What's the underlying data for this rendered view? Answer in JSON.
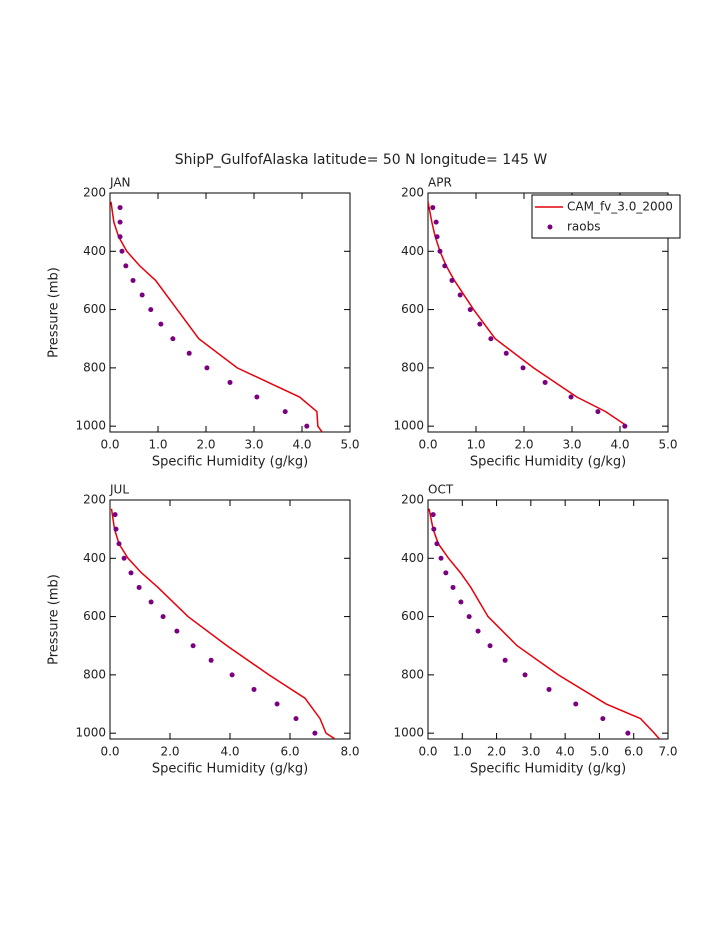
{
  "title": "ShipP_GulfofAlaska  latitude= 50 N longitude= 145 W",
  "chart_data": [
    {
      "type": "line",
      "label": "JAN",
      "xlabel": "Specific Humidity (g/kg)",
      "ylabel": "Pressure (mb)",
      "xlim": [
        0,
        5
      ],
      "ylim": [
        200,
        1020
      ],
      "y_reversed": true,
      "legend": false,
      "xticks": [
        {
          "value": 0,
          "label": "0.0"
        },
        {
          "value": 1,
          "label": "1.0"
        },
        {
          "value": 2,
          "label": "2.0"
        },
        {
          "value": 3,
          "label": "3.0"
        },
        {
          "value": 4,
          "label": "4.0"
        },
        {
          "value": 5,
          "label": "5.0"
        }
      ],
      "yticks": [
        200,
        400,
        600,
        800,
        1000
      ],
      "series": [
        {
          "name": "CAM_fv_3.0_2000",
          "color": "#e8000b",
          "style": "line",
          "x": [
            0.02,
            0.08,
            0.18,
            0.35,
            0.62,
            0.95,
            1.4,
            1.85,
            2.65,
            3.95,
            4.31,
            4.33,
            4.42
          ],
          "values": [
            230,
            300,
            350,
            400,
            450,
            500,
            600,
            700,
            800,
            900,
            950,
            1000,
            1020
          ]
        },
        {
          "name": "raobs",
          "color": "#7b0080",
          "style": "marker",
          "x": [
            0.21,
            0.21,
            0.21,
            0.25,
            0.33,
            0.48,
            0.67,
            0.85,
            1.06,
            1.31,
            1.65,
            2.02,
            2.5,
            3.06,
            3.65,
            4.1
          ],
          "values": [
            250,
            300,
            350,
            400,
            450,
            500,
            550,
            600,
            650,
            700,
            750,
            800,
            850,
            900,
            950,
            1000
          ]
        }
      ]
    },
    {
      "type": "line",
      "label": "APR",
      "xlabel": "Specific Humidity (g/kg)",
      "xlim": [
        0,
        5
      ],
      "ylim": [
        200,
        1020
      ],
      "y_reversed": true,
      "legend": true,
      "xticks": [
        {
          "value": 0,
          "label": "0.0"
        },
        {
          "value": 1,
          "label": "1.0"
        },
        {
          "value": 2,
          "label": "2.0"
        },
        {
          "value": 3,
          "label": "3.0"
        },
        {
          "value": 4,
          "label": "4.0"
        },
        {
          "value": 5,
          "label": "5.0"
        }
      ],
      "yticks": [
        200,
        400,
        600,
        800,
        1000
      ],
      "series": [
        {
          "name": "CAM_fv_3.0_2000",
          "color": "#e8000b",
          "style": "line",
          "x": [
            0.0,
            0.08,
            0.15,
            0.25,
            0.38,
            0.55,
            0.95,
            1.4,
            2.2,
            3.1,
            3.7,
            4.15
          ],
          "values": [
            230,
            300,
            350,
            400,
            450,
            500,
            600,
            700,
            800,
            900,
            950,
            1000
          ]
        },
        {
          "name": "raobs",
          "color": "#7b0080",
          "style": "marker",
          "x": [
            0.1,
            0.17,
            0.19,
            0.25,
            0.35,
            0.5,
            0.67,
            0.88,
            1.08,
            1.31,
            1.63,
            1.98,
            2.44,
            2.98,
            3.54,
            4.1
          ],
          "values": [
            250,
            300,
            350,
            400,
            450,
            500,
            550,
            600,
            650,
            700,
            750,
            800,
            850,
            900,
            950,
            1000
          ]
        }
      ]
    },
    {
      "type": "line",
      "label": "JUL",
      "xlabel": "Specific Humidity (g/kg)",
      "ylabel": "Pressure (mb)",
      "xlim": [
        0,
        8
      ],
      "ylim": [
        200,
        1020
      ],
      "y_reversed": true,
      "legend": false,
      "xticks": [
        {
          "value": 0,
          "label": "0.0"
        },
        {
          "value": 2,
          "label": "2.0"
        },
        {
          "value": 4,
          "label": "4.0"
        },
        {
          "value": 6,
          "label": "6.0"
        },
        {
          "value": 8,
          "label": "8.0"
        }
      ],
      "yticks": [
        200,
        400,
        600,
        800,
        1000
      ],
      "series": [
        {
          "name": "CAM_fv_3.0_2000",
          "color": "#e8000b",
          "style": "line",
          "x": [
            0.05,
            0.15,
            0.3,
            0.6,
            1.05,
            1.6,
            2.6,
            3.9,
            5.3,
            6.5,
            7.0,
            7.2,
            7.5
          ],
          "values": [
            230,
            300,
            350,
            400,
            450,
            500,
            600,
            700,
            800,
            880,
            950,
            1000,
            1020
          ]
        },
        {
          "name": "raobs",
          "color": "#7b0080",
          "style": "marker",
          "x": [
            0.17,
            0.2,
            0.3,
            0.47,
            0.7,
            0.97,
            1.37,
            1.77,
            2.23,
            2.77,
            3.37,
            4.07,
            4.8,
            5.57,
            6.2,
            6.83
          ],
          "values": [
            250,
            300,
            350,
            400,
            450,
            500,
            550,
            600,
            650,
            700,
            750,
            800,
            850,
            900,
            950,
            1000
          ]
        }
      ]
    },
    {
      "type": "line",
      "label": "OCT",
      "xlabel": "Specific Humidity (g/kg)",
      "xlim": [
        0,
        7
      ],
      "ylim": [
        200,
        1020
      ],
      "y_reversed": true,
      "legend": false,
      "xticks": [
        {
          "value": 0,
          "label": "0.0"
        },
        {
          "value": 1,
          "label": "1.0"
        },
        {
          "value": 2,
          "label": "2.0"
        },
        {
          "value": 3,
          "label": "3.0"
        },
        {
          "value": 4,
          "label": "4.0"
        },
        {
          "value": 5,
          "label": "5.0"
        },
        {
          "value": 6,
          "label": "6.0"
        },
        {
          "value": 7,
          "label": "7.0"
        }
      ],
      "yticks": [
        200,
        400,
        600,
        800,
        1000
      ],
      "series": [
        {
          "name": "CAM_fv_3.0_2000",
          "color": "#e8000b",
          "style": "line",
          "x": [
            0.03,
            0.15,
            0.3,
            0.6,
            0.95,
            1.25,
            1.75,
            2.6,
            3.8,
            5.2,
            6.2,
            6.6,
            6.75
          ],
          "values": [
            230,
            300,
            350,
            400,
            450,
            500,
            600,
            700,
            800,
            900,
            950,
            1000,
            1020
          ]
        },
        {
          "name": "raobs",
          "color": "#7b0080",
          "style": "marker",
          "x": [
            0.15,
            0.17,
            0.26,
            0.38,
            0.52,
            0.73,
            0.96,
            1.2,
            1.46,
            1.81,
            2.25,
            2.83,
            3.53,
            4.31,
            5.1,
            5.83
          ],
          "values": [
            250,
            300,
            350,
            400,
            450,
            500,
            550,
            600,
            650,
            700,
            750,
            800,
            850,
            900,
            950,
            1000
          ]
        }
      ]
    }
  ]
}
